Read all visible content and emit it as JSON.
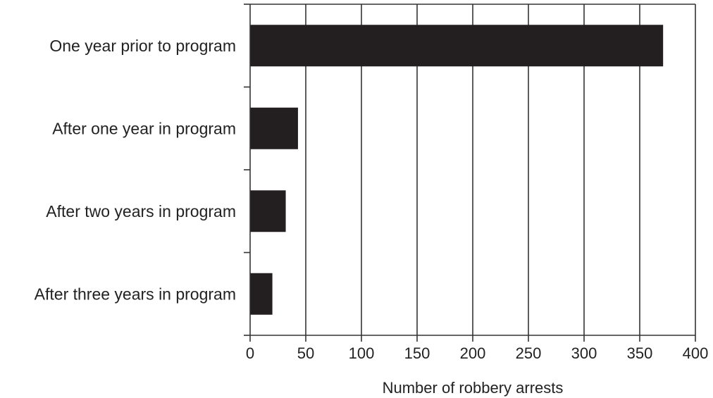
{
  "chart_data": {
    "type": "bar",
    "orientation": "horizontal",
    "categories": [
      "One year prior to program",
      "After one year in program",
      "After two years in program",
      "After three years in program"
    ],
    "values": [
      371,
      43,
      32,
      20
    ],
    "xlabel": "Number of robbery arrests",
    "ylabel": "",
    "xlim": [
      0,
      400
    ],
    "xticks": [
      0,
      50,
      100,
      150,
      200,
      250,
      300,
      350,
      400
    ],
    "grid": "vertical",
    "bar_color": "#231f20",
    "grid_color": "#333333"
  }
}
